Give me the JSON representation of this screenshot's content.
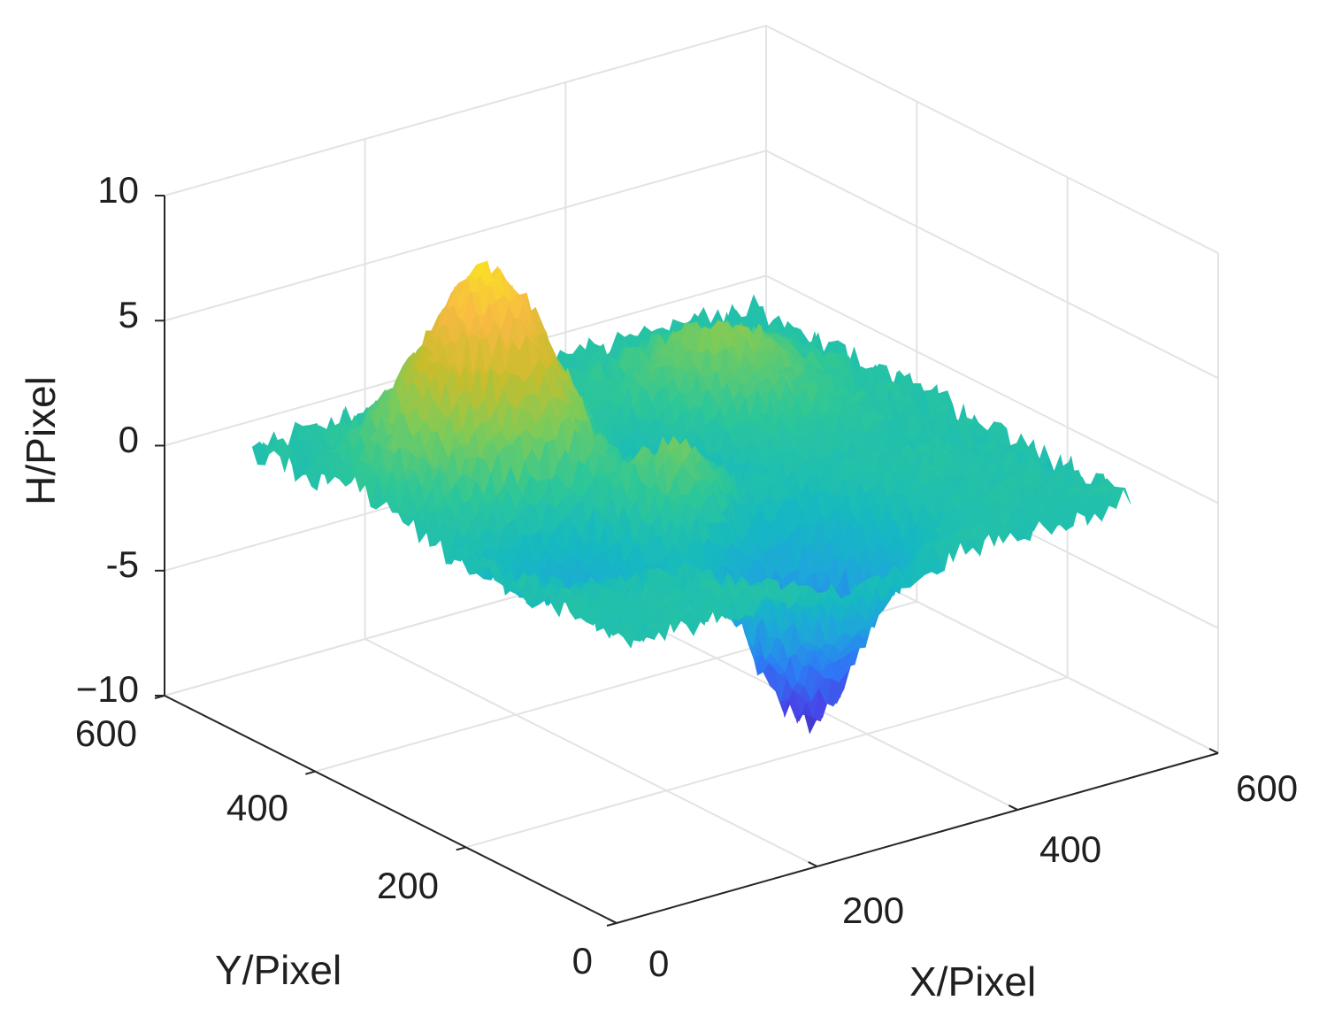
{
  "chart_data": {
    "type": "surface",
    "title": "",
    "xlabel": "X/Pixel",
    "ylabel": "Y/Pixel",
    "zlabel": "H/Pixel",
    "xlim": [
      0,
      600
    ],
    "ylim": [
      0,
      600
    ],
    "zlim": [
      -10,
      10
    ],
    "x_ticks": [
      0,
      200,
      400,
      600
    ],
    "y_ticks": [
      0,
      200,
      400,
      600
    ],
    "z_ticks": [
      -10,
      -5,
      0,
      5,
      10
    ],
    "x_tick_labels": [
      "0",
      "200",
      "400",
      "600"
    ],
    "y_tick_labels": [
      "0",
      "200",
      "400",
      "600"
    ],
    "z_tick_labels": [
      "−10",
      "-5",
      "0",
      "5",
      "10"
    ],
    "surface_extent": {
      "x": [
        50,
        550
      ],
      "y": [
        50,
        550
      ]
    },
    "baseline_height": 0,
    "noise_amplitude": 0.6,
    "features": [
      {
        "kind": "peak",
        "x": 175,
        "y": 400,
        "height": 8.0,
        "width": 55
      },
      {
        "kind": "peak",
        "x": 400,
        "y": 400,
        "height": 3.0,
        "width": 60
      },
      {
        "kind": "peak",
        "x": 250,
        "y": 250,
        "height": 3.0,
        "width": 40
      },
      {
        "kind": "valley",
        "x": 150,
        "y": 250,
        "height": -2.5,
        "width": 50
      },
      {
        "kind": "valley",
        "x": 300,
        "y": 350,
        "height": -2.0,
        "width": 55
      },
      {
        "kind": "valley",
        "x": 300,
        "y": 150,
        "height": -7.5,
        "width": 45
      }
    ],
    "grid": true,
    "colormap": "parula",
    "colormap_stops": [
      "#3e26a8",
      "#4746e8",
      "#2d7cf5",
      "#1ea7da",
      "#16b9c0",
      "#2ec797",
      "#7dcb59",
      "#c8bd2c",
      "#f8ba43",
      "#f9e721"
    ]
  }
}
